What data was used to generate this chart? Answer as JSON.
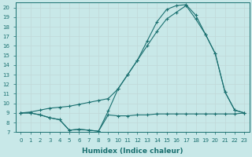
{
  "xlabel": "Humidex (Indice chaleur)",
  "bg_color": "#c8e8e8",
  "line_color": "#1a7070",
  "grid_color": "#c0d8d8",
  "xlim": [
    -0.5,
    23.5
  ],
  "ylim": [
    7,
    20.5
  ],
  "xticks": [
    0,
    1,
    2,
    3,
    4,
    5,
    6,
    7,
    8,
    9,
    10,
    11,
    12,
    13,
    14,
    15,
    16,
    17,
    18,
    19,
    20,
    21,
    22,
    23
  ],
  "yticks": [
    7,
    8,
    9,
    10,
    11,
    12,
    13,
    14,
    15,
    16,
    17,
    18,
    19,
    20
  ],
  "series_min_x": [
    0,
    1,
    2,
    3,
    4,
    5,
    6,
    7,
    8,
    9,
    10,
    11,
    12,
    13,
    14,
    15,
    16,
    17,
    18,
    19,
    20,
    21,
    22,
    23
  ],
  "series_min_y": [
    9.0,
    9.0,
    8.8,
    8.5,
    8.3,
    7.2,
    7.3,
    7.2,
    7.1,
    8.8,
    8.7,
    8.7,
    8.8,
    8.8,
    8.9,
    8.9,
    8.9,
    8.9,
    8.9,
    8.9,
    8.9,
    8.9,
    8.9,
    9.0
  ],
  "series_max_x": [
    0,
    1,
    2,
    3,
    4,
    5,
    6,
    7,
    8,
    9,
    10,
    11,
    12,
    13,
    14,
    15,
    16,
    17,
    18,
    19,
    20,
    21,
    22,
    23
  ],
  "series_max_y": [
    9.0,
    9.0,
    8.8,
    8.5,
    8.3,
    7.2,
    7.3,
    7.2,
    7.1,
    9.2,
    11.5,
    13.0,
    14.5,
    16.5,
    18.5,
    19.8,
    20.2,
    20.3,
    19.2,
    17.2,
    15.2,
    11.2,
    9.3,
    9.0
  ],
  "series_avg_x": [
    0,
    1,
    2,
    3,
    4,
    5,
    6,
    7,
    8,
    9,
    10,
    11,
    12,
    13,
    14,
    15,
    16,
    17,
    18,
    19,
    20,
    21,
    22,
    23
  ],
  "series_avg_y": [
    9.0,
    9.1,
    9.3,
    9.5,
    9.6,
    9.7,
    9.9,
    10.1,
    10.3,
    10.5,
    11.5,
    13.0,
    14.5,
    16.0,
    17.5,
    18.8,
    19.5,
    20.2,
    18.8,
    17.2,
    15.2,
    11.2,
    9.3,
    9.0
  ]
}
